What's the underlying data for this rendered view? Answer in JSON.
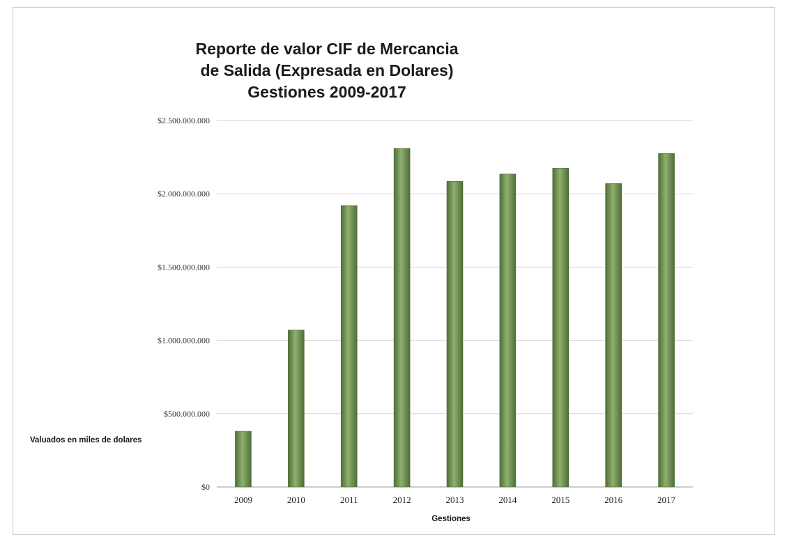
{
  "chart_data": {
    "type": "bar",
    "title": [
      "Reporte de valor CIF de Mercancia",
      "de Salida (Expresada en Dolares)",
      "Gestiones 2009-2017"
    ],
    "xlabel": "Gestiones",
    "ylabel": "",
    "annotation": "Valuados  en miles de dolares",
    "categories": [
      "2009",
      "2010",
      "2011",
      "2012",
      "2013",
      "2014",
      "2015",
      "2016",
      "2017"
    ],
    "values": [
      380000000,
      1070000000,
      1920000000,
      2310000000,
      2085000000,
      2135000000,
      2175000000,
      2070000000,
      2275000000
    ],
    "ylim": [
      0,
      2500000000
    ],
    "yticks": [
      0,
      500000000,
      1000000000,
      1500000000,
      2000000000,
      2500000000
    ],
    "ytick_labels": [
      "$0",
      "$500.000.000",
      "$1.000.000.000",
      "$1.500.000.000",
      "$2.000.000.000",
      "$2.500.000.000"
    ],
    "grid": true,
    "legend": "none",
    "colors": {
      "bar": "#6e9152",
      "bar_highlight": "#8fb06e",
      "bar_shadow": "#4e6e38",
      "grid": "#d6d6d6"
    }
  }
}
